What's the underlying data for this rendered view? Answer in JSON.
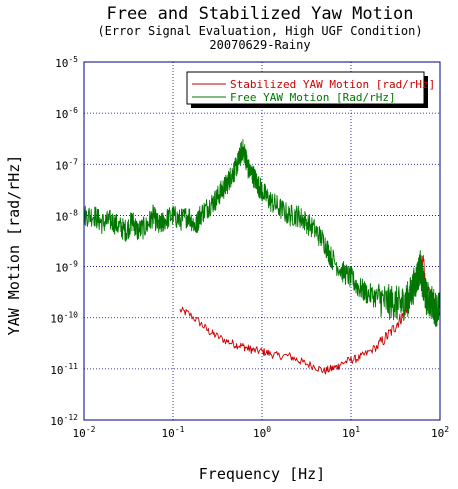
{
  "chart_data": {
    "type": "line",
    "title": "Free and Stabilized Yaw Motion",
    "subtitle_line1": "(Error Signal Evaluation, High UGF Condition)",
    "subtitle_line2": "20070629-Rainy",
    "xlabel": "Frequency [Hz]",
    "ylabel": "YAW Motion [rad/rHz]",
    "x_scale": "log",
    "y_scale": "log",
    "xlim": [
      0.01,
      100
    ],
    "ylim": [
      1e-12,
      1e-05
    ],
    "grid": true,
    "legend_position": "top-right",
    "x_ticks": [
      {
        "base": "10",
        "exp": "-2"
      },
      {
        "base": "10",
        "exp": "-1"
      },
      {
        "base": "10",
        "exp": "0"
      },
      {
        "base": "10",
        "exp": "1"
      },
      {
        "base": "10",
        "exp": "2"
      }
    ],
    "y_ticks": [
      {
        "base": "10",
        "exp": "-12"
      },
      {
        "base": "10",
        "exp": "-11"
      },
      {
        "base": "10",
        "exp": "-10"
      },
      {
        "base": "10",
        "exp": "-9"
      },
      {
        "base": "10",
        "exp": "-8"
      },
      {
        "base": "10",
        "exp": "-7"
      },
      {
        "base": "10",
        "exp": "-6"
      },
      {
        "base": "10",
        "exp": "-5"
      }
    ],
    "series": [
      {
        "name": "Stabilized YAW Motion [rad/rHz]",
        "color": "#cc0000",
        "x": [
          0.12,
          0.15,
          0.2,
          0.25,
          0.3,
          0.4,
          0.5,
          0.6,
          0.7,
          0.8,
          1.0,
          1.2,
          1.5,
          2,
          2.5,
          3,
          4,
          5,
          6,
          7,
          8,
          10,
          12,
          15,
          20,
          25,
          30,
          35,
          40,
          45,
          50,
          55,
          60,
          65,
          70,
          80,
          90,
          100
        ],
        "y": [
          1.4e-10,
          1.2e-10,
          8e-11,
          5.5e-11,
          4.5e-11,
          3.5e-11,
          3e-11,
          2.8e-11,
          2.5e-11,
          2.3e-11,
          2.2e-11,
          2e-11,
          1.8e-11,
          1.8e-11,
          1.5e-11,
          1.3e-11,
          1.1e-11,
          9e-12,
          1e-11,
          1.1e-11,
          1.3e-11,
          1.5e-11,
          1.6e-11,
          2e-11,
          2.8e-11,
          4.2e-11,
          6e-11,
          9e-11,
          1.2e-10,
          2e-10,
          3.5e-10,
          5e-10,
          8e-10,
          1.5e-09,
          3e-10,
          3e-10,
          1.5e-10,
          1.4e-10
        ]
      },
      {
        "name": "Free YAW Motion [Rad/rHz]",
        "color": "#007700",
        "x": [
          0.01,
          0.013,
          0.016,
          0.02,
          0.025,
          0.03,
          0.035,
          0.04,
          0.05,
          0.06,
          0.07,
          0.08,
          0.1,
          0.12,
          0.15,
          0.18,
          0.2,
          0.25,
          0.3,
          0.35,
          0.4,
          0.45,
          0.5,
          0.55,
          0.6,
          0.65,
          0.7,
          0.8,
          0.9,
          1.0,
          1.2,
          1.5,
          2,
          2.5,
          3,
          4,
          5,
          6,
          8,
          10,
          12,
          15,
          20,
          25,
          30,
          35,
          40,
          45,
          50,
          55,
          60,
          65,
          70,
          80,
          90,
          100
        ],
        "y": [
          1e-08,
          1e-08,
          7e-09,
          8e-09,
          6e-09,
          5e-09,
          8e-09,
          5e-09,
          6e-09,
          1e-08,
          6e-09,
          8e-09,
          1e-08,
          8e-09,
          1e-08,
          6e-09,
          1e-08,
          1.5e-08,
          2e-08,
          3e-08,
          4e-08,
          6e-08,
          8e-08,
          1.2e-07,
          2e-07,
          1.5e-07,
          8e-08,
          6e-08,
          4e-08,
          3e-08,
          2e-08,
          1.5e-08,
          1e-08,
          1e-08,
          8e-09,
          5e-09,
          3e-09,
          1.5e-09,
          8e-10,
          6e-10,
          4e-10,
          3e-10,
          2.5e-10,
          2e-10,
          2e-10,
          1.8e-10,
          2e-10,
          2.5e-10,
          4e-10,
          6e-10,
          1e-09,
          4e-10,
          2.5e-10,
          2e-10,
          1.5e-10,
          1.5e-10
        ]
      }
    ]
  }
}
